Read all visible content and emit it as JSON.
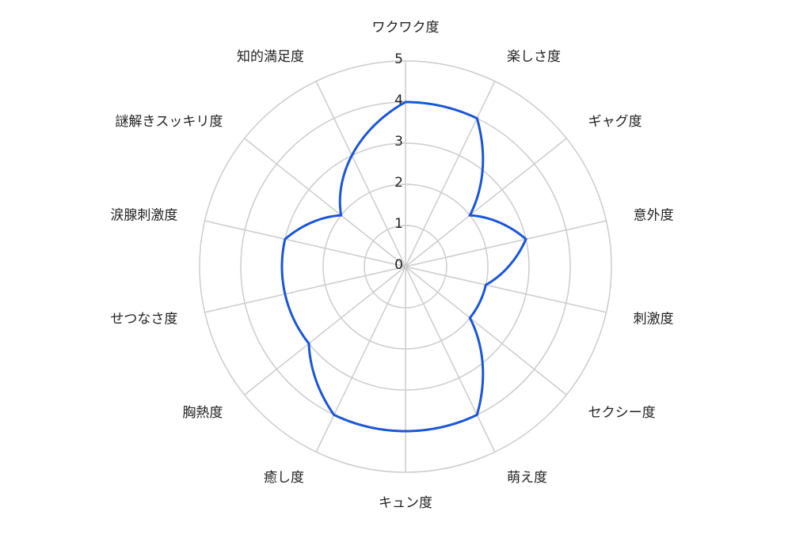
{
  "chart_data": {
    "type": "radar",
    "categories": [
      "ワクワク度",
      "楽しさ度",
      "ギャグ度",
      "意外度",
      "刺激度",
      "セクシー度",
      "萌え度",
      "キュン度",
      "癒し度",
      "胸熱度",
      "せつなさ度",
      "涙腺刺激度",
      "謎解きスッキリ度",
      "知的満足度"
    ],
    "values": [
      4,
      4,
      2,
      3,
      2,
      2,
      4,
      4,
      4,
      3,
      3,
      3,
      2,
      3
    ],
    "rlim": [
      0,
      5
    ],
    "ticks": [
      "0",
      "1",
      "2",
      "3",
      "4",
      "5"
    ],
    "grid": true,
    "colors": {
      "series": "#1a56d6",
      "grid": "#cccccc"
    }
  }
}
